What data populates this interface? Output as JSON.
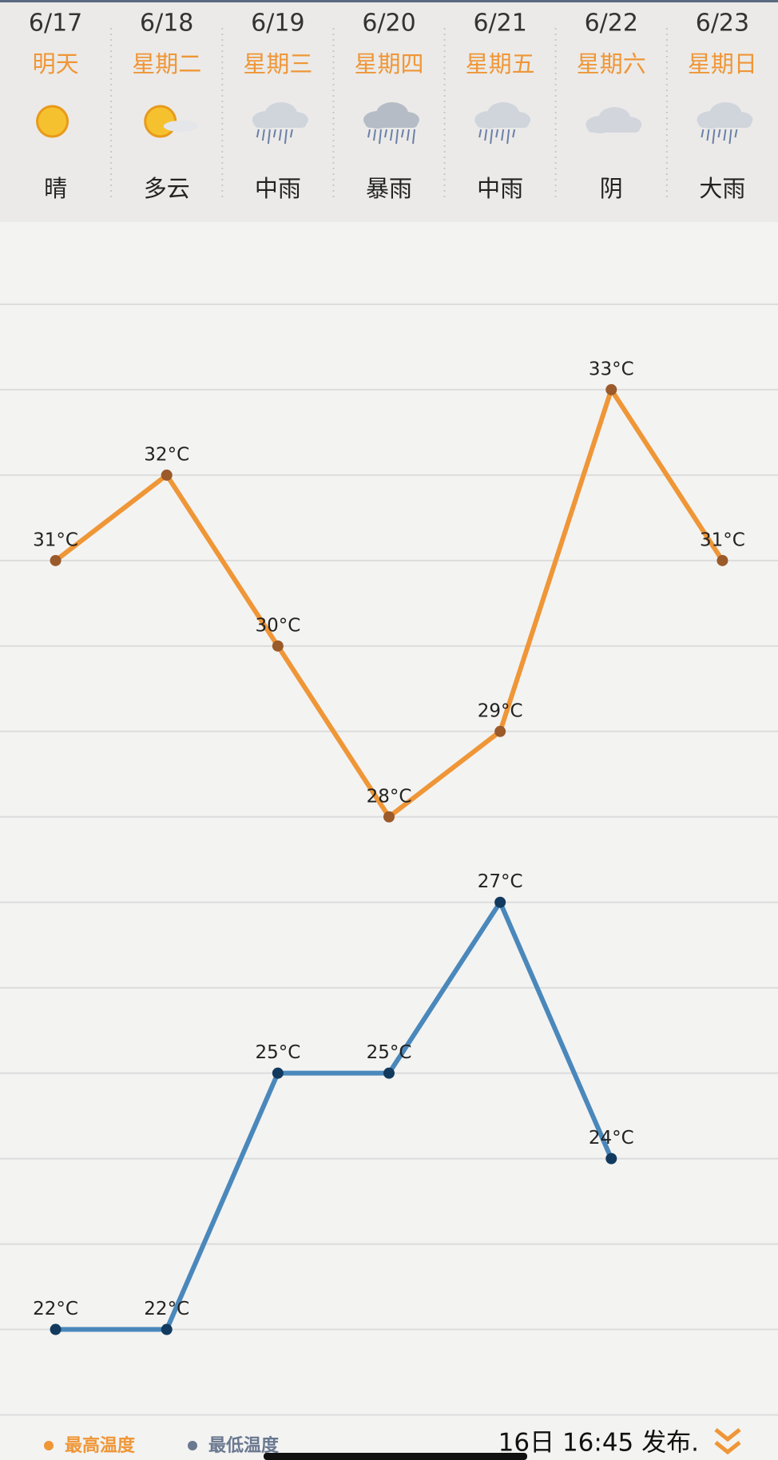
{
  "chart_data": {
    "type": "line",
    "categories": [
      "6/17",
      "6/18",
      "6/19",
      "6/20",
      "6/21",
      "6/22",
      "6/23"
    ],
    "weekdays": [
      "明天",
      "星期二",
      "星期三",
      "星期四",
      "星期五",
      "星期六",
      "星期日"
    ],
    "conditions": [
      "晴",
      "多云",
      "中雨",
      "暴雨",
      "中雨",
      "阴",
      "大雨"
    ],
    "series": [
      {
        "name": "最高温度",
        "color": "#ef9637",
        "point_color": "#9a5a2a",
        "values": [
          31,
          32,
          30,
          28,
          29,
          33,
          31
        ],
        "value_labels": [
          "31°C",
          "32°C",
          "30°C",
          "28°C",
          "29°C",
          "33°C",
          "31°C"
        ]
      },
      {
        "name": "最低温度",
        "color": "#4a88bb",
        "point_color": "#123a5e",
        "values": [
          22,
          22,
          25,
          25,
          27,
          24,
          null
        ],
        "value_labels": [
          "22°C",
          "22°C",
          "25°C",
          "25°C",
          "27°C",
          "24°C",
          null
        ]
      }
    ],
    "ylim": [
      20.5,
      35
    ],
    "yticks": [
      21,
      22,
      23,
      24,
      25,
      26,
      27,
      28,
      29,
      30,
      31,
      32,
      33,
      34
    ],
    "grid": true,
    "footer": "16日 16:45 发布."
  }
}
